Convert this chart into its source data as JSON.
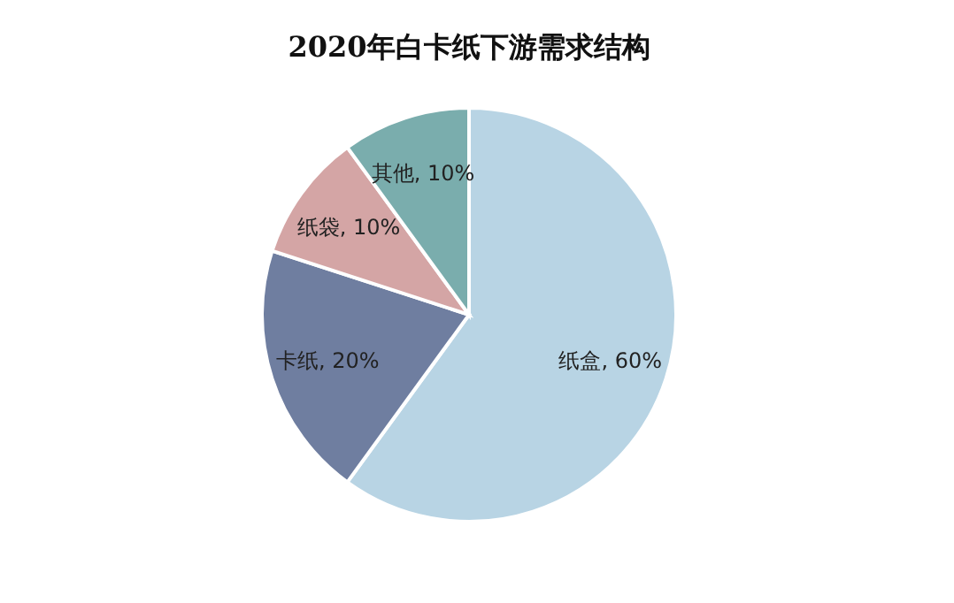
{
  "chart_data": {
    "type": "pie",
    "title": "2020年白卡纸下游需求结构",
    "categories": [
      "纸盒",
      "卡纸",
      "纸袋",
      "其他"
    ],
    "values": [
      60,
      20,
      10,
      10
    ],
    "colors": [
      "#b8d4e4",
      "#6f7ea0",
      "#d4a5a5",
      "#7aadad"
    ],
    "data_labels": true,
    "value_labels": [
      "60%",
      "20%",
      "10%",
      "10%"
    ]
  }
}
